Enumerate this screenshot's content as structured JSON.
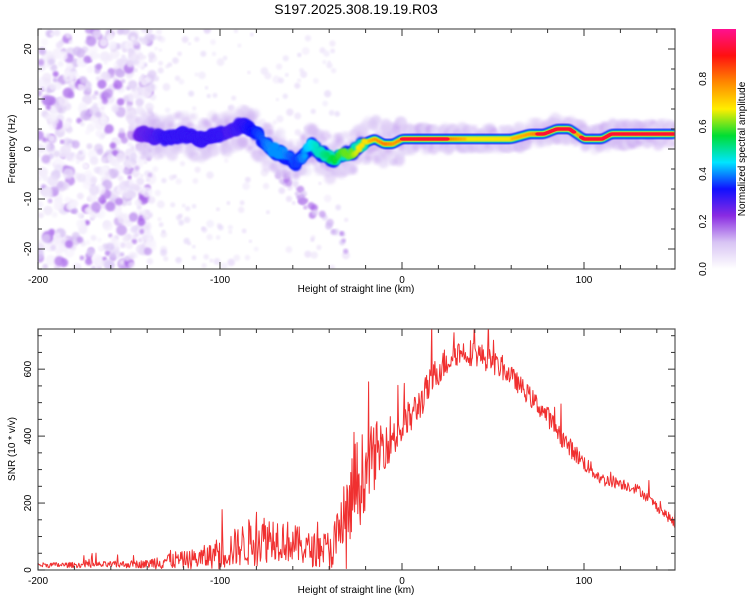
{
  "title": "S197.2025.308.19.19.R03",
  "chart_data": [
    {
      "type": "heatmap",
      "title": "S197.2025.308.19.19.R03",
      "xlabel": "Height of straight line (km)",
      "ylabel": "Frequency (Hz)",
      "xlim": [
        -200,
        150
      ],
      "ylim": [
        -24,
        24
      ],
      "xticks": [
        -200,
        -100,
        0,
        100
      ],
      "yticks": [
        -20,
        -10,
        0,
        10,
        20
      ],
      "colorbar": {
        "label": "Normalized spectral amplitude",
        "range": [
          0.0,
          1.0
        ],
        "ticks": [
          "0.0",
          "0.2",
          "0.4",
          "0.6",
          "0.8"
        ],
        "colormap": [
          "#ffffff",
          "#d8c4f4",
          "#8a2be2",
          "#1010ff",
          "#00e5ff",
          "#00dd33",
          "#ffee00",
          "#ff8800",
          "#ff1010",
          "#ff1090"
        ]
      },
      "ridge": {
        "description": "dominant frequency track",
        "x": [
          -145,
          -130,
          -120,
          -110,
          -100,
          -95,
          -88,
          -80,
          -72,
          -65,
          -58,
          -50,
          -44,
          -38,
          -32,
          -28,
          -22,
          -15,
          -10,
          -5,
          0,
          20,
          40,
          60,
          70,
          78,
          85,
          92,
          96,
          100,
          110,
          115,
          130,
          150
        ],
        "freq": [
          3,
          2,
          3,
          2,
          3,
          3,
          5,
          3,
          0,
          -1,
          -3,
          1,
          -1,
          -2,
          -1,
          -1,
          1,
          2,
          1,
          1,
          2,
          2,
          2,
          2,
          3,
          3,
          4,
          4,
          3,
          2,
          2,
          3,
          3,
          3
        ],
        "amplitude": [
          0.25,
          0.3,
          0.3,
          0.3,
          0.3,
          0.28,
          0.3,
          0.35,
          0.4,
          0.4,
          0.35,
          0.45,
          0.5,
          0.55,
          0.6,
          0.6,
          0.7,
          0.8,
          0.85,
          0.8,
          0.85,
          0.9,
          0.7,
          0.75,
          0.8,
          0.9,
          0.95,
          0.95,
          0.8,
          0.9,
          0.9,
          0.95,
          0.95,
          0.9
        ]
      },
      "noise_region": {
        "x_from": -200,
        "x_to": -145,
        "amplitude": "0.0-0.15"
      }
    },
    {
      "type": "line",
      "xlabel": "Height of straight line (km)",
      "ylabel": "SNR (10 * v/v)",
      "xlim": [
        -200,
        150
      ],
      "ylim": [
        0,
        720
      ],
      "xticks": [
        -200,
        -100,
        0,
        100
      ],
      "yticks": [
        0,
        200,
        400,
        600
      ],
      "color": "#f03030",
      "series": [
        {
          "name": "SNR",
          "x": [
            -200,
            -180,
            -160,
            -140,
            -130,
            -120,
            -110,
            -100,
            -90,
            -80,
            -70,
            -60,
            -50,
            -40,
            -35,
            -30,
            -25,
            -20,
            -10,
            0,
            10,
            20,
            30,
            40,
            50,
            60,
            70,
            80,
            90,
            100,
            110,
            120,
            130,
            140,
            150
          ],
          "mean": [
            15,
            15,
            16,
            18,
            30,
            30,
            35,
            50,
            70,
            90,
            100,
            80,
            60,
            60,
            90,
            150,
            250,
            300,
            380,
            420,
            500,
            600,
            650,
            650,
            620,
            580,
            520,
            460,
            380,
            320,
            270,
            260,
            240,
            190,
            140
          ],
          "amplitude": [
            8,
            8,
            10,
            12,
            30,
            25,
            35,
            50,
            60,
            80,
            70,
            60,
            50,
            60,
            100,
            150,
            150,
            120,
            80,
            60,
            50,
            50,
            40,
            40,
            35,
            30,
            30,
            30,
            30,
            25,
            20,
            18,
            15,
            15,
            15
          ]
        }
      ]
    }
  ]
}
